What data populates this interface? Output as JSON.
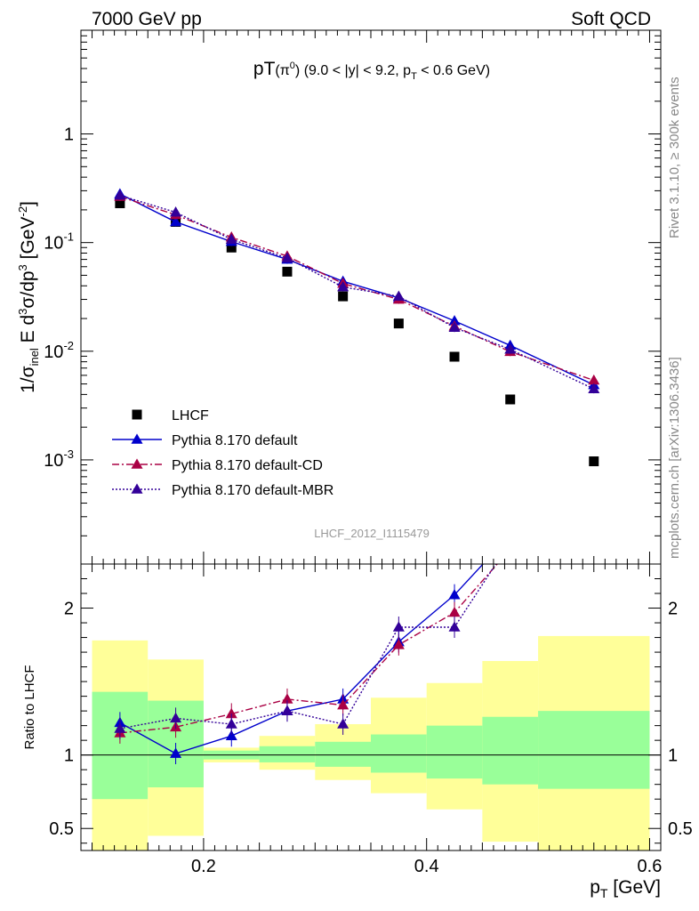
{
  "header": {
    "left": "7000 GeV pp",
    "right": "Soft QCD"
  },
  "side": {
    "top": "Rivet 3.1.10, ≥ 300k events",
    "bottom": "mcplots.cern.ch [arXiv:1306.3436]"
  },
  "watermark": "LHCF_2012_I1115479",
  "chart_data": [
    {
      "type": "scatter",
      "title": "pT(π⁰) (9.0 < |y| < 9.2, pT < 0.6 GeV)",
      "ylabel": "1/σinel E d³σ/dp³ [GeV⁻²]",
      "xlabel": "",
      "xlim": [
        0.09,
        0.61
      ],
      "ylim": [
        0.00011,
        9
      ],
      "yscale": "log",
      "y_ticks": [
        "1",
        "10⁻¹",
        "10⁻²",
        "10⁻³"
      ],
      "legend_position": "bottom-left",
      "x": [
        0.125,
        0.175,
        0.225,
        0.275,
        0.325,
        0.375,
        0.425,
        0.475,
        0.55
      ],
      "series": [
        {
          "name": "LHCF",
          "color": "#000000",
          "style": "markers",
          "values": [
            0.23,
            0.155,
            0.09,
            0.054,
            0.032,
            0.018,
            0.0089,
            0.0036,
            0.00097
          ]
        },
        {
          "name": "Pythia 8.170 default",
          "color": "#0000cc",
          "style": "solid",
          "values": [
            0.28,
            0.155,
            0.102,
            0.07,
            0.044,
            0.031,
            0.019,
            0.0113,
            0.0049
          ]
        },
        {
          "name": "Pythia 8.170 default-CD",
          "color": "#aa0044",
          "style": "dashdot",
          "values": [
            0.265,
            0.18,
            0.112,
            0.075,
            0.042,
            0.03,
            0.017,
            0.0099,
            0.0054
          ]
        },
        {
          "name": "Pythia 8.170 default-MBR",
          "color": "#330099",
          "style": "dotted",
          "values": [
            0.272,
            0.19,
            0.107,
            0.072,
            0.039,
            0.032,
            0.0165,
            0.0104,
            0.0045
          ]
        }
      ]
    },
    {
      "type": "line",
      "title": "",
      "ylabel": "Ratio to LHCF",
      "xlabel": "p_T [GeV]",
      "xlim": [
        0.09,
        0.61
      ],
      "ylim": [
        0.35,
        2.3
      ],
      "x_ticks": [
        "0.2",
        "0.4",
        "0.6"
      ],
      "y_ticks": [
        "0.5",
        "1",
        "2"
      ],
      "reference_line": 1,
      "bands": {
        "edges": [
          0.1,
          0.15,
          0.2,
          0.25,
          0.3,
          0.35,
          0.4,
          0.45,
          0.5,
          0.6
        ],
        "green_low": [
          0.7,
          0.78,
          0.97,
          0.95,
          0.92,
          0.88,
          0.84,
          0.8,
          0.77
        ],
        "green_high": [
          1.43,
          1.37,
          1.03,
          1.06,
          1.09,
          1.14,
          1.2,
          1.26,
          1.3
        ],
        "yellow_low": [
          0.1,
          0.45,
          0.95,
          0.9,
          0.83,
          0.74,
          0.63,
          0.41,
          0.12
        ],
        "yellow_high": [
          1.78,
          1.65,
          1.05,
          1.13,
          1.21,
          1.39,
          1.49,
          1.64,
          1.81
        ]
      },
      "x": [
        0.125,
        0.175,
        0.225,
        0.275,
        0.325,
        0.375,
        0.425,
        0.475
      ],
      "series": [
        {
          "name": "Pythia 8.170 default",
          "color": "#0000cc",
          "style": "solid",
          "values": [
            1.22,
            1.01,
            1.13,
            1.3,
            1.38,
            1.77,
            2.09,
            2.5
          ]
        },
        {
          "name": "Pythia 8.170 default-CD",
          "color": "#aa0044",
          "style": "dashdot",
          "values": [
            1.15,
            1.19,
            1.28,
            1.38,
            1.34,
            1.75,
            1.97,
            2.4
          ]
        },
        {
          "name": "Pythia 8.170 default-MBR",
          "color": "#330099",
          "style": "dotted",
          "values": [
            1.18,
            1.25,
            1.21,
            1.3,
            1.21,
            1.87,
            1.87,
            2.45
          ]
        }
      ]
    }
  ]
}
